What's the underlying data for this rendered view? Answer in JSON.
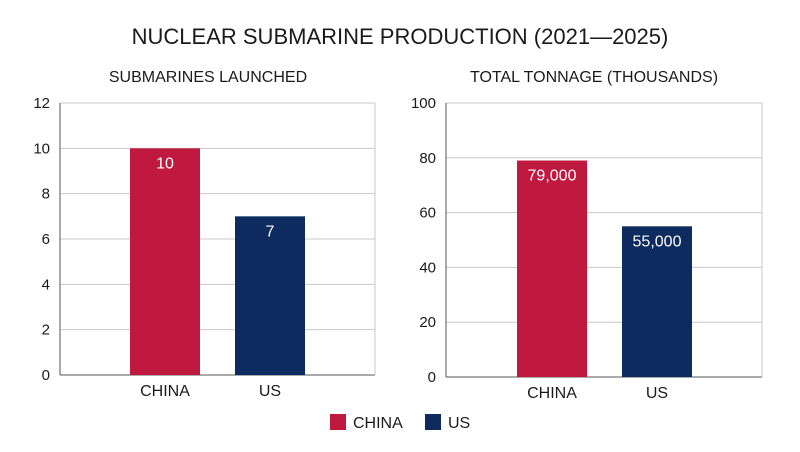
{
  "title": "NUCLEAR SUBMARINE PRODUCTION (2021—2025)",
  "colors": {
    "CHINA": "#c0193f",
    "US": "#0d2b5e",
    "grid": "#c8c8c8",
    "axis": "#555555"
  },
  "legend": [
    {
      "name": "CHINA",
      "color": "#c0193f"
    },
    {
      "name": "US",
      "color": "#0d2b5e"
    }
  ],
  "chart_data": [
    {
      "type": "bar",
      "title": "SUBMARINES LAUNCHED",
      "categories": [
        "CHINA",
        "US"
      ],
      "values": [
        10,
        7
      ],
      "data_labels": [
        "10",
        "7"
      ],
      "ylim": [
        0,
        12
      ],
      "yticks": [
        0,
        2,
        4,
        6,
        8,
        10,
        12
      ],
      "grid": true
    },
    {
      "type": "bar",
      "title": "TOTAL TONNAGE (THOUSANDS)",
      "categories": [
        "CHINA",
        "US"
      ],
      "values": [
        79,
        55
      ],
      "data_labels": [
        "79,000",
        "55,000"
      ],
      "ylim": [
        0,
        100
      ],
      "yticks": [
        0,
        20,
        40,
        60,
        80,
        100
      ],
      "grid": true
    }
  ]
}
